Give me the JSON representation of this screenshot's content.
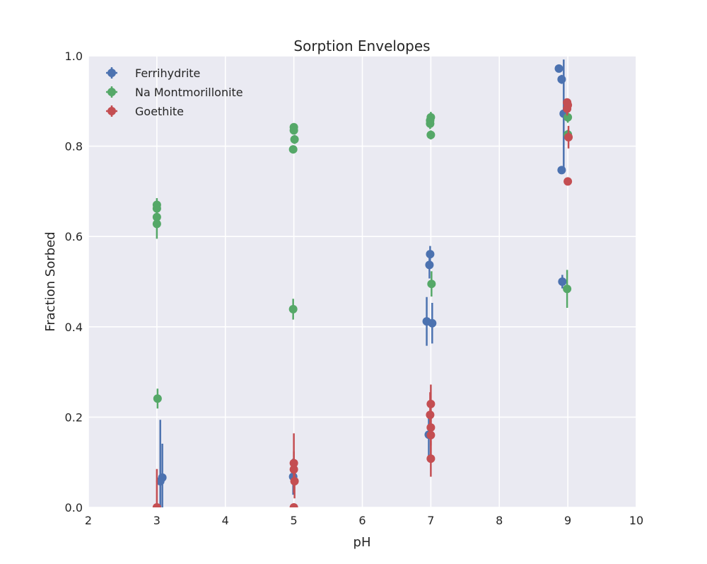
{
  "chart_data": {
    "type": "scatter",
    "title": "Sorption Envelopes",
    "xlabel": "pH",
    "ylabel": "Fraction Sorbed",
    "xlim": [
      2,
      10
    ],
    "ylim": [
      0.0,
      1.0
    ],
    "xticks": [
      "2",
      "3",
      "4",
      "5",
      "6",
      "7",
      "8",
      "9",
      "10"
    ],
    "yticks": [
      "0.0",
      "0.2",
      "0.4",
      "0.6",
      "0.8",
      "1.0"
    ],
    "grid": true,
    "legend_position": "top-left",
    "error_bars": true,
    "series": [
      {
        "name": "Ferrihydrite",
        "color": "#4c72b0",
        "points": [
          {
            "x": 3.05,
            "y": 0.058,
            "err": 0.136
          },
          {
            "x": 3.08,
            "y": 0.066,
            "err": 0.075
          },
          {
            "x": 4.99,
            "y": 0.068,
            "err": 0.04
          },
          {
            "x": 6.94,
            "y": 0.412,
            "err": 0.054
          },
          {
            "x": 7.02,
            "y": 0.408,
            "err": 0.045
          },
          {
            "x": 6.98,
            "y": 0.537,
            "err": 0.03
          },
          {
            "x": 6.99,
            "y": 0.561,
            "err": 0.018
          },
          {
            "x": 6.97,
            "y": 0.161,
            "err": 0.05
          },
          {
            "x": 8.87,
            "y": 0.972,
            "err": 0.005
          },
          {
            "x": 8.91,
            "y": 0.948,
            "err": 0.01
          },
          {
            "x": 8.94,
            "y": 0.872,
            "err": 0.12
          },
          {
            "x": 8.91,
            "y": 0.747,
            "err": 0.005
          },
          {
            "x": 8.92,
            "y": 0.5,
            "err": 0.015
          }
        ]
      },
      {
        "name": "Na Montmorillonite",
        "color": "#55a868",
        "points": [
          {
            "x": 3.0,
            "y": 0.67,
            "err": 0.015
          },
          {
            "x": 3.0,
            "y": 0.662,
            "err": 0.015
          },
          {
            "x": 3.0,
            "y": 0.643,
            "err": 0.02
          },
          {
            "x": 3.0,
            "y": 0.628,
            "err": 0.033
          },
          {
            "x": 3.01,
            "y": 0.241,
            "err": 0.022
          },
          {
            "x": 5.0,
            "y": 0.842,
            "err": 0.008
          },
          {
            "x": 5.0,
            "y": 0.835,
            "err": 0.008
          },
          {
            "x": 5.01,
            "y": 0.815,
            "err": 0.01
          },
          {
            "x": 4.99,
            "y": 0.793,
            "err": 0.008
          },
          {
            "x": 4.99,
            "y": 0.439,
            "err": 0.023
          },
          {
            "x": 7.0,
            "y": 0.864,
            "err": 0.012
          },
          {
            "x": 6.99,
            "y": 0.857,
            "err": 0.012
          },
          {
            "x": 6.99,
            "y": 0.85,
            "err": 0.012
          },
          {
            "x": 7.0,
            "y": 0.825,
            "err": 0.01
          },
          {
            "x": 7.01,
            "y": 0.495,
            "err": 0.028
          },
          {
            "x": 9.0,
            "y": 0.864,
            "err": 0.012
          },
          {
            "x": 9.0,
            "y": 0.826,
            "err": 0.01
          },
          {
            "x": 8.99,
            "y": 0.484,
            "err": 0.042
          }
        ]
      },
      {
        "name": "Goethite",
        "color": "#c44e52",
        "points": [
          {
            "x": 3.0,
            "y": 0.0,
            "err": 0.085
          },
          {
            "x": 5.0,
            "y": 0.098,
            "err": 0.066
          },
          {
            "x": 5.0,
            "y": 0.084,
            "err": 0.04
          },
          {
            "x": 5.01,
            "y": 0.058,
            "err": 0.038
          },
          {
            "x": 5.0,
            "y": 0.0,
            "err": 0.005
          },
          {
            "x": 7.0,
            "y": 0.229,
            "err": 0.043
          },
          {
            "x": 6.99,
            "y": 0.205,
            "err": 0.05
          },
          {
            "x": 7.0,
            "y": 0.177,
            "err": 0.04
          },
          {
            "x": 7.0,
            "y": 0.16,
            "err": 0.05
          },
          {
            "x": 7.0,
            "y": 0.108,
            "err": 0.04
          },
          {
            "x": 8.99,
            "y": 0.897,
            "err": 0.008
          },
          {
            "x": 9.0,
            "y": 0.891,
            "err": 0.008
          },
          {
            "x": 8.99,
            "y": 0.883,
            "err": 0.015
          },
          {
            "x": 9.01,
            "y": 0.82,
            "err": 0.025
          },
          {
            "x": 9.0,
            "y": 0.722,
            "err": 0.005
          }
        ]
      }
    ]
  }
}
